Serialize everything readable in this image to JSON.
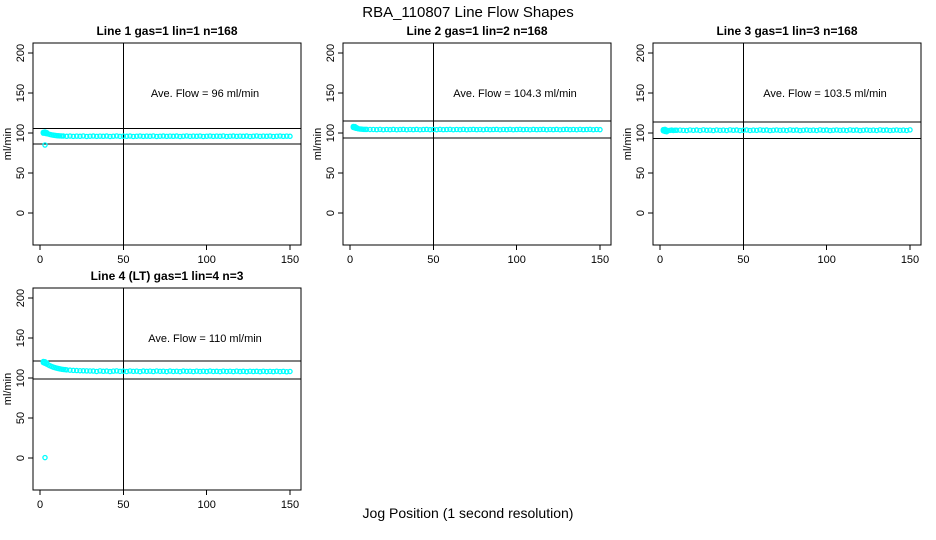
{
  "page": {
    "title": "RBA_110807  Line Flow Shapes",
    "xlabel": "Jog Position (1 second resolution)"
  },
  "colors": {
    "marker": "#00FFFF",
    "axis": "#000000",
    "background": "#FFFFFF"
  },
  "chart_data": [
    {
      "type": "scatter",
      "title": "Line 1 gas=1 lin=1 n=168",
      "annotation": "Ave. Flow =  96  ml/min",
      "ave_flow": 96,
      "n": 168,
      "ylabel": "ml/min",
      "x_ticks": [
        0,
        50,
        100,
        150
      ],
      "y_ticks": [
        0,
        50,
        100,
        150,
        200
      ],
      "xlim": [
        -5,
        157
      ],
      "ylim": [
        -40,
        212
      ],
      "vline_x": 50,
      "hlines": [
        105.6,
        86.4
      ],
      "points": [
        [
          2,
          100.8
        ],
        [
          2,
          99.8
        ],
        [
          2.5,
          100.4
        ],
        [
          3,
          101.2
        ],
        [
          3,
          100.0
        ],
        [
          3.5,
          99.5
        ],
        [
          4,
          100.5
        ],
        [
          4,
          99.2
        ],
        [
          5,
          98.8
        ],
        [
          6,
          98.2
        ],
        [
          7,
          97.7
        ],
        [
          8,
          97.3
        ],
        [
          9,
          97.0
        ],
        [
          10,
          96.7
        ],
        [
          11,
          96.5
        ],
        [
          12,
          96.4
        ],
        [
          13,
          96.3
        ],
        [
          14,
          96.2
        ],
        [
          16,
          95.9
        ],
        [
          18,
          96.2
        ],
        [
          20,
          95.8
        ],
        [
          22,
          96.1
        ],
        [
          24,
          95.9
        ],
        [
          26,
          96.3
        ],
        [
          28,
          95.7
        ],
        [
          30,
          96.0
        ],
        [
          32,
          96.2
        ],
        [
          34,
          95.8
        ],
        [
          36,
          96.1
        ],
        [
          38,
          95.9
        ],
        [
          40,
          96.2
        ],
        [
          42,
          95.7
        ],
        [
          44,
          96.0
        ],
        [
          46,
          96.3
        ],
        [
          48,
          95.8
        ],
        [
          50,
          96.1
        ],
        [
          52,
          95.9
        ],
        [
          54,
          96.2
        ],
        [
          56,
          95.7
        ],
        [
          58,
          96.0
        ],
        [
          60,
          96.2
        ],
        [
          62,
          95.8
        ],
        [
          64,
          96.1
        ],
        [
          66,
          95.9
        ],
        [
          68,
          96.3
        ],
        [
          70,
          95.7
        ],
        [
          72,
          96.0
        ],
        [
          74,
          96.2
        ],
        [
          76,
          95.8
        ],
        [
          78,
          96.1
        ],
        [
          80,
          95.9
        ],
        [
          82,
          96.2
        ],
        [
          84,
          95.7
        ],
        [
          86,
          96.0
        ],
        [
          88,
          96.3
        ],
        [
          90,
          95.8
        ],
        [
          92,
          96.1
        ],
        [
          94,
          95.9
        ],
        [
          96,
          96.2
        ],
        [
          98,
          95.7
        ],
        [
          100,
          96.0
        ],
        [
          102,
          96.2
        ],
        [
          104,
          95.8
        ],
        [
          106,
          96.1
        ],
        [
          108,
          95.9
        ],
        [
          110,
          96.3
        ],
        [
          112,
          95.7
        ],
        [
          114,
          96.0
        ],
        [
          116,
          96.2
        ],
        [
          118,
          95.8
        ],
        [
          120,
          96.1
        ],
        [
          122,
          95.9
        ],
        [
          124,
          96.2
        ],
        [
          126,
          95.7
        ],
        [
          128,
          96.0
        ],
        [
          130,
          96.3
        ],
        [
          132,
          95.8
        ],
        [
          134,
          96.1
        ],
        [
          136,
          95.9
        ],
        [
          138,
          96.2
        ],
        [
          140,
          95.7
        ],
        [
          142,
          96.0
        ],
        [
          144,
          96.2
        ],
        [
          146,
          95.8
        ],
        [
          148,
          96.1
        ],
        [
          150,
          95.9
        ]
      ],
      "outliers": [
        [
          3,
          85
        ]
      ]
    },
    {
      "type": "scatter",
      "title": "Line 2 gas=1 lin=2 n=168",
      "annotation": "Ave. Flow =  104.3  ml/min",
      "ave_flow": 104.3,
      "n": 168,
      "ylabel": "ml/min",
      "x_ticks": [
        0,
        50,
        100,
        150
      ],
      "y_ticks": [
        0,
        50,
        100,
        150,
        200
      ],
      "xlim": [
        -5,
        157
      ],
      "ylim": [
        -40,
        212
      ],
      "vline_x": 50,
      "hlines": [
        114.7,
        93.9
      ],
      "points": [
        [
          2,
          108.2
        ],
        [
          2,
          107.0
        ],
        [
          2.5,
          107.6
        ],
        [
          3,
          107.9
        ],
        [
          3,
          106.4
        ],
        [
          3.5,
          106.0
        ],
        [
          4,
          105.8
        ],
        [
          4,
          106.6
        ],
        [
          5,
          105.3
        ],
        [
          6,
          105.0
        ],
        [
          7,
          104.8
        ],
        [
          8,
          104.6
        ],
        [
          9,
          104.5
        ],
        [
          10,
          104.5
        ],
        [
          12,
          104.4
        ],
        [
          14,
          104.4
        ],
        [
          16,
          104.2
        ],
        [
          18,
          104.5
        ],
        [
          20,
          104.1
        ],
        [
          22,
          104.4
        ],
        [
          24,
          104.2
        ],
        [
          26,
          104.5
        ],
        [
          28,
          104.1
        ],
        [
          30,
          104.3
        ],
        [
          32,
          104.5
        ],
        [
          34,
          104.1
        ],
        [
          36,
          104.4
        ],
        [
          38,
          104.2
        ],
        [
          40,
          104.5
        ],
        [
          42,
          104.1
        ],
        [
          44,
          104.3
        ],
        [
          46,
          104.5
        ],
        [
          48,
          104.2
        ],
        [
          50,
          104.4
        ],
        [
          52,
          104.1
        ],
        [
          54,
          104.5
        ],
        [
          56,
          104.2
        ],
        [
          58,
          104.3
        ],
        [
          60,
          104.5
        ],
        [
          62,
          104.1
        ],
        [
          64,
          104.4
        ],
        [
          66,
          104.2
        ],
        [
          68,
          104.5
        ],
        [
          70,
          104.1
        ],
        [
          72,
          104.3
        ],
        [
          74,
          104.5
        ],
        [
          76,
          104.2
        ],
        [
          78,
          104.4
        ],
        [
          80,
          104.1
        ],
        [
          82,
          104.5
        ],
        [
          84,
          104.2
        ],
        [
          86,
          104.3
        ],
        [
          88,
          104.5
        ],
        [
          90,
          104.1
        ],
        [
          92,
          104.4
        ],
        [
          94,
          104.2
        ],
        [
          96,
          104.5
        ],
        [
          98,
          104.1
        ],
        [
          100,
          104.3
        ],
        [
          102,
          104.5
        ],
        [
          104,
          104.2
        ],
        [
          106,
          104.4
        ],
        [
          108,
          104.1
        ],
        [
          110,
          104.5
        ],
        [
          112,
          104.2
        ],
        [
          114,
          104.3
        ],
        [
          116,
          104.5
        ],
        [
          118,
          104.1
        ],
        [
          120,
          104.4
        ],
        [
          122,
          104.2
        ],
        [
          124,
          104.5
        ],
        [
          126,
          104.1
        ],
        [
          128,
          104.3
        ],
        [
          130,
          104.5
        ],
        [
          132,
          104.2
        ],
        [
          134,
          104.4
        ],
        [
          136,
          104.1
        ],
        [
          138,
          104.5
        ],
        [
          140,
          104.2
        ],
        [
          142,
          104.3
        ],
        [
          144,
          104.5
        ],
        [
          146,
          104.1
        ],
        [
          148,
          104.4
        ],
        [
          150,
          104.2
        ]
      ],
      "outliers": []
    },
    {
      "type": "scatter",
      "title": "Line 3 gas=1 lin=3 n=168",
      "annotation": "Ave. Flow =  103.5  ml/min",
      "ave_flow": 103.5,
      "n": 168,
      "ylabel": "ml/min",
      "x_ticks": [
        0,
        50,
        100,
        150
      ],
      "y_ticks": [
        0,
        50,
        100,
        150,
        200
      ],
      "xlim": [
        -5,
        157
      ],
      "ylim": [
        -40,
        212
      ],
      "vline_x": 50,
      "hlines": [
        113.9,
        93.2
      ],
      "points": [
        [
          2,
          104.2
        ],
        [
          2,
          102.8
        ],
        [
          2.5,
          103.6
        ],
        [
          3,
          104.6
        ],
        [
          3,
          102.0
        ],
        [
          4,
          101.6
        ],
        [
          4,
          103.4
        ],
        [
          5,
          103.0
        ],
        [
          6,
          103.3
        ],
        [
          7,
          103.6
        ],
        [
          8,
          103.2
        ],
        [
          9,
          103.5
        ],
        [
          10,
          103.4
        ],
        [
          12,
          103.6
        ],
        [
          14,
          103.3
        ],
        [
          16,
          103.1
        ],
        [
          18,
          103.8
        ],
        [
          20,
          103.3
        ],
        [
          22,
          103.7
        ],
        [
          24,
          103.2
        ],
        [
          26,
          103.9
        ],
        [
          28,
          103.4
        ],
        [
          30,
          103.6
        ],
        [
          32,
          103.1
        ],
        [
          34,
          103.8
        ],
        [
          36,
          103.3
        ],
        [
          38,
          103.6
        ],
        [
          40,
          103.2
        ],
        [
          42,
          103.9
        ],
        [
          44,
          103.4
        ],
        [
          46,
          103.7
        ],
        [
          48,
          103.1
        ],
        [
          50,
          103.5
        ],
        [
          52,
          103.8
        ],
        [
          54,
          103.2
        ],
        [
          56,
          103.6
        ],
        [
          58,
          103.3
        ],
        [
          60,
          103.9
        ],
        [
          62,
          103.4
        ],
        [
          64,
          103.7
        ],
        [
          66,
          103.1
        ],
        [
          68,
          103.5
        ],
        [
          70,
          103.8
        ],
        [
          72,
          103.3
        ],
        [
          74,
          103.6
        ],
        [
          76,
          103.2
        ],
        [
          78,
          103.9
        ],
        [
          80,
          103.4
        ],
        [
          82,
          103.7
        ],
        [
          84,
          103.1
        ],
        [
          86,
          103.5
        ],
        [
          88,
          103.8
        ],
        [
          90,
          103.3
        ],
        [
          92,
          103.6
        ],
        [
          94,
          103.2
        ],
        [
          96,
          103.9
        ],
        [
          98,
          103.4
        ],
        [
          100,
          103.7
        ],
        [
          102,
          103.1
        ],
        [
          104,
          103.5
        ],
        [
          106,
          103.8
        ],
        [
          108,
          103.3
        ],
        [
          110,
          103.6
        ],
        [
          112,
          103.2
        ],
        [
          114,
          103.9
        ],
        [
          116,
          103.4
        ],
        [
          118,
          103.7
        ],
        [
          120,
          103.1
        ],
        [
          122,
          103.5
        ],
        [
          124,
          103.8
        ],
        [
          126,
          103.3
        ],
        [
          128,
          103.6
        ],
        [
          130,
          103.2
        ],
        [
          132,
          103.9
        ],
        [
          134,
          103.4
        ],
        [
          136,
          103.7
        ],
        [
          138,
          103.2
        ],
        [
          140,
          103.5
        ],
        [
          142,
          103.8
        ],
        [
          144,
          103.3
        ],
        [
          146,
          103.6
        ],
        [
          148,
          103.2
        ],
        [
          150,
          103.9
        ]
      ],
      "outliers": []
    },
    {
      "type": "scatter",
      "title": "Line 4 (LT) gas=1 lin=4 n=3",
      "annotation": "Ave. Flow =  110  ml/min",
      "ave_flow": 110,
      "n": 3,
      "ylabel": "ml/min",
      "x_ticks": [
        0,
        50,
        100,
        150
      ],
      "y_ticks": [
        0,
        50,
        100,
        150,
        200
      ],
      "xlim": [
        -5,
        157
      ],
      "ylim": [
        -40,
        212
      ],
      "vline_x": 50,
      "hlines": [
        121,
        99
      ],
      "points": [
        [
          2,
          120.6
        ],
        [
          2,
          119.3
        ],
        [
          2.5,
          120.0
        ],
        [
          3,
          120.3
        ],
        [
          3,
          118.4
        ],
        [
          4,
          117.5
        ],
        [
          4,
          118.9
        ],
        [
          5,
          116.3
        ],
        [
          6,
          115.3
        ],
        [
          7,
          114.4
        ],
        [
          8,
          113.6
        ],
        [
          9,
          112.9
        ],
        [
          10,
          112.3
        ],
        [
          11,
          111.8
        ],
        [
          12,
          111.4
        ],
        [
          13,
          111.0
        ],
        [
          14,
          110.7
        ],
        [
          15,
          110.5
        ],
        [
          16,
          110.2
        ],
        [
          18,
          109.8
        ],
        [
          20,
          109.5
        ],
        [
          22,
          109.3
        ],
        [
          24,
          109.1
        ],
        [
          26,
          109.0
        ],
        [
          28,
          108.9
        ],
        [
          30,
          108.8
        ],
        [
          32,
          108.7
        ],
        [
          34,
          108.2
        ],
        [
          36,
          108.9
        ],
        [
          38,
          108.4
        ],
        [
          40,
          108.7
        ],
        [
          42,
          108.1
        ],
        [
          44,
          108.6
        ],
        [
          46,
          108.9
        ],
        [
          48,
          108.3
        ],
        [
          50,
          108.6
        ],
        [
          52,
          108.1
        ],
        [
          54,
          108.8
        ],
        [
          56,
          108.3
        ],
        [
          58,
          108.6
        ],
        [
          60,
          108.0
        ],
        [
          62,
          108.7
        ],
        [
          64,
          108.3
        ],
        [
          66,
          108.6
        ],
        [
          68,
          108.1
        ],
        [
          70,
          108.8
        ],
        [
          72,
          108.3
        ],
        [
          74,
          108.5
        ],
        [
          76,
          108.0
        ],
        [
          78,
          108.7
        ],
        [
          80,
          108.2
        ],
        [
          82,
          108.5
        ],
        [
          84,
          108.0
        ],
        [
          86,
          108.7
        ],
        [
          88,
          108.3
        ],
        [
          90,
          108.5
        ],
        [
          92,
          108.0
        ],
        [
          94,
          108.6
        ],
        [
          96,
          108.2
        ],
        [
          98,
          108.5
        ],
        [
          100,
          108.1
        ],
        [
          102,
          108.7
        ],
        [
          104,
          108.2
        ],
        [
          106,
          108.4
        ],
        [
          108,
          108.0
        ],
        [
          110,
          108.6
        ],
        [
          112,
          108.2
        ],
        [
          114,
          108.5
        ],
        [
          116,
          108.0
        ],
        [
          118,
          108.6
        ],
        [
          120,
          108.1
        ],
        [
          122,
          108.4
        ],
        [
          124,
          107.9
        ],
        [
          126,
          108.5
        ],
        [
          128,
          108.1
        ],
        [
          130,
          108.4
        ],
        [
          132,
          107.9
        ],
        [
          134,
          108.5
        ],
        [
          136,
          108.0
        ],
        [
          138,
          108.3
        ],
        [
          140,
          107.9
        ],
        [
          142,
          108.5
        ],
        [
          144,
          108.0
        ],
        [
          146,
          108.3
        ],
        [
          148,
          107.8
        ],
        [
          150,
          108.2
        ]
      ],
      "outliers": [
        [
          3,
          0.5
        ]
      ]
    }
  ]
}
